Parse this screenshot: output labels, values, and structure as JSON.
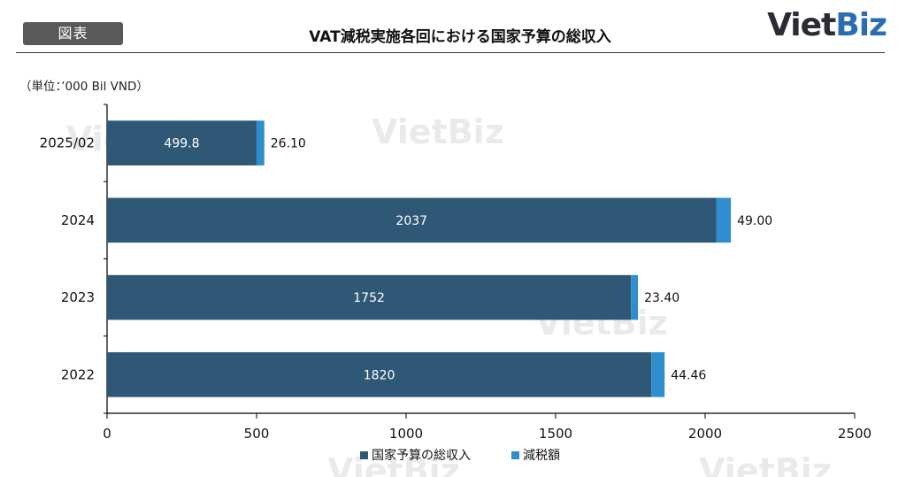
{
  "header": {
    "tag_label": "図表",
    "title": "VAT減税実施各回における国家予算の総収入",
    "brand_dark": "Viet",
    "brand_blue": "Biz",
    "brand_full": "VietBiz"
  },
  "unit_label": "（単位：’000 Bil VND）",
  "colors": {
    "revenue": "#2f5876",
    "reduction": "#2f8ecd",
    "watermark": "#d9d9d9",
    "brand_blue": "#2a6db5"
  },
  "chart_data": {
    "type": "bar",
    "orientation": "horizontal",
    "stacked": true,
    "categories": [
      "2025/02",
      "2024",
      "2023",
      "2022"
    ],
    "series": [
      {
        "name": "国家予算の総収入",
        "values": [
          499.8,
          2037,
          1752,
          1820
        ],
        "labels": [
          "499.8",
          "2037",
          "1752",
          "1820"
        ]
      },
      {
        "name": "減税額",
        "values": [
          26.1,
          49.0,
          23.4,
          44.46
        ],
        "labels": [
          "26.10",
          "49.00",
          "23.40",
          "44.46"
        ]
      }
    ],
    "xlim": [
      0,
      2500
    ],
    "xticks": [
      "0",
      "500",
      "1000",
      "1500",
      "2000",
      "2500"
    ],
    "grid": false,
    "legend": "bottom"
  }
}
